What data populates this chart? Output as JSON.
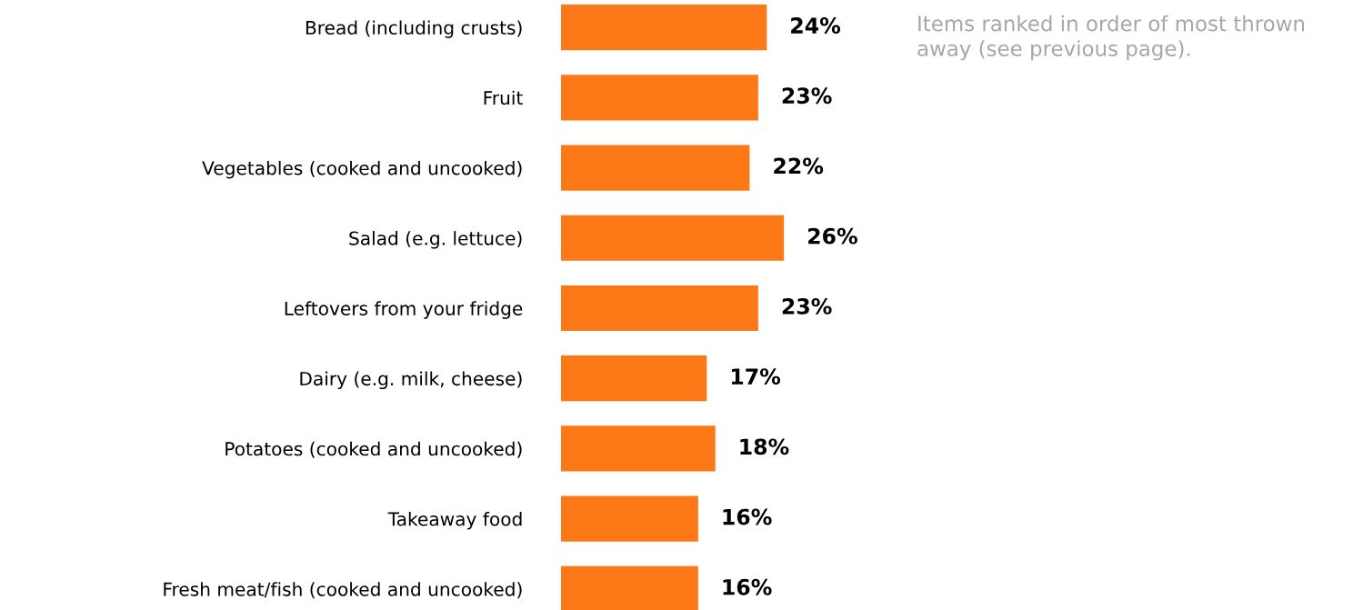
{
  "chart_data": {
    "type": "bar",
    "orientation": "horizontal",
    "categories": [
      "Bread (including crusts)",
      "Fruit",
      "Vegetables (cooked and uncooked)",
      "Salad (e.g. lettuce)",
      "Leftovers from your fridge",
      "Dairy (e.g. milk, cheese)",
      "Potatoes (cooked and uncooked)",
      "Takeaway food",
      "Fresh meat/fish (cooked and uncooked)"
    ],
    "values": [
      24,
      23,
      22,
      26,
      23,
      17,
      18,
      16,
      16
    ],
    "value_labels": [
      "24%",
      "23%",
      "22%",
      "26%",
      "23%",
      "17%",
      "18%",
      "16%",
      "16%"
    ],
    "color": "#fd7816",
    "annotations": [
      "Items ranked in order of most thrown away (see previous page)."
    ],
    "grid": false,
    "legend": false
  }
}
